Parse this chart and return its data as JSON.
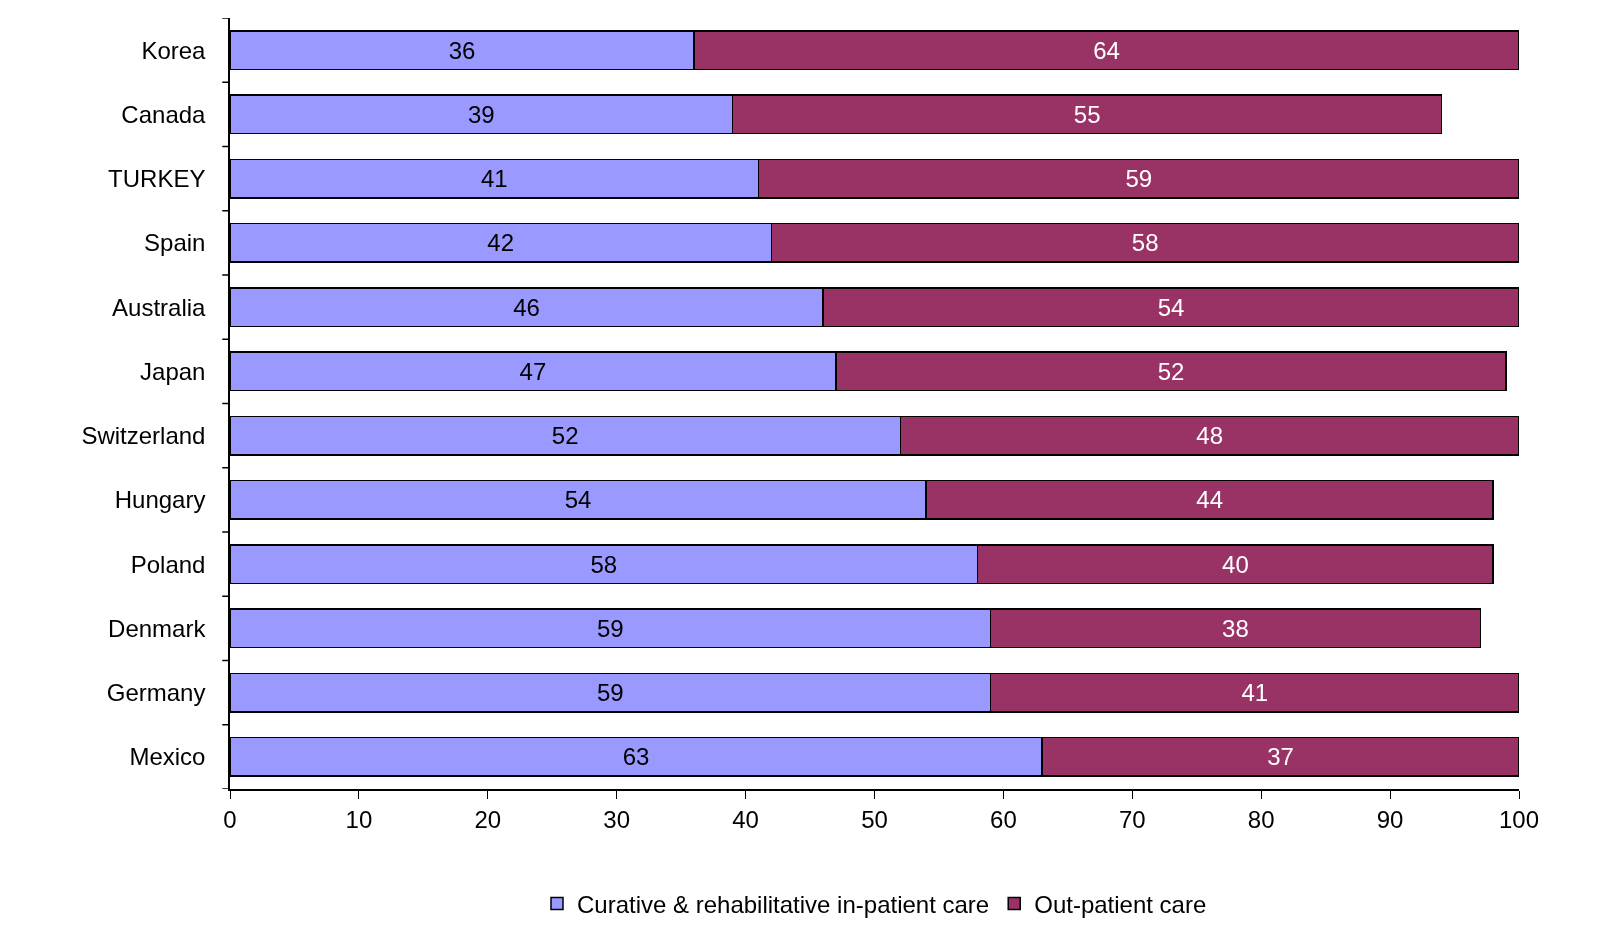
{
  "chart_data": {
    "type": "bar",
    "orientation": "horizontal",
    "stacked": true,
    "data_labels": true,
    "legend": "bottom",
    "grid": false,
    "categories": [
      "Korea",
      "Canada",
      "TURKEY",
      "Spain",
      "Australia",
      "Japan",
      "Switzerland",
      "Hungary",
      "Poland",
      "Denmark",
      "Germany",
      "Mexico"
    ],
    "series": [
      {
        "name": "Curative & rehabilitative in-patient care",
        "color": "#9999ff",
        "values": [
          36,
          39,
          41,
          42,
          46,
          47,
          52,
          54,
          58,
          59,
          59,
          63
        ]
      },
      {
        "name": "Out-patient care",
        "color": "#993366",
        "values": [
          64,
          55,
          59,
          58,
          54,
          52,
          48,
          44,
          40,
          38,
          41,
          37
        ]
      }
    ],
    "xlim": [
      0,
      100
    ],
    "xticks": [
      0,
      10,
      20,
      30,
      40,
      50,
      60,
      70,
      80,
      90,
      100
    ]
  }
}
